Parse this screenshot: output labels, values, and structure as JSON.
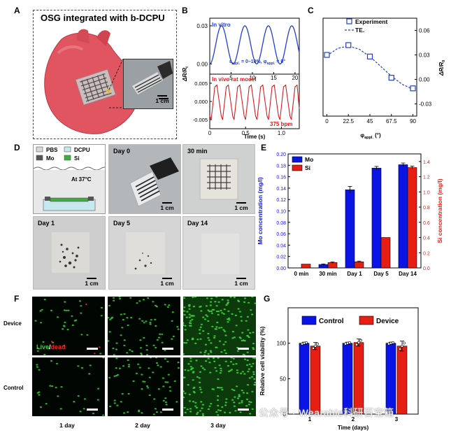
{
  "panels": {
    "A": {
      "label": "A",
      "title": "OSG integrated with b-DCPU",
      "scale": "1 cm"
    },
    "B": {
      "label": "B",
      "top_legend": "In vitro",
      "top_condition_1": "ε",
      "top_condition_1_sub": "appl.",
      "top_condition_2": " = 0–10%, φ",
      "top_condition_2_sub": "appl.",
      "top_condition_3": " = 0°",
      "bottom_legend": "In vivo rat model",
      "bottom_rate": "375 bpm",
      "ylabel": "ΔR/R",
      "ylabel_sub": "t",
      "xlabel": "Time (s)",
      "top_x_ticks": [
        "5",
        "10",
        "15",
        "20"
      ],
      "top_y_ticks": [
        "0.03",
        "0.00"
      ],
      "bottom_x_ticks": [
        "0",
        "0.5",
        "1.0"
      ],
      "bottom_y_ticks": [
        "0.005",
        "0.000",
        "-0.005"
      ]
    },
    "C": {
      "label": "C",
      "legend_experiment": "Experiment",
      "legend_theory": "TE.",
      "xlabel": "φ",
      "xlabel_sub": "appl.",
      "xlabel_unit": " (°)",
      "ylabel": "ΔR/R",
      "ylabel_sub": "0",
      "x_ticks": [
        "0",
        "22.5",
        "45",
        "67.5",
        "90"
      ],
      "y_ticks": [
        "0.06",
        "0.03",
        "0.00",
        "-0.03"
      ]
    },
    "D": {
      "label": "D",
      "legend": [
        "PBS",
        "DCPU",
        "Mo",
        "Si"
      ],
      "legend_colors": [
        "#d9d9d9",
        "#c8e8f0",
        "#555555",
        "#3fae3f"
      ],
      "condition": "At 37°C",
      "photos": [
        {
          "caption": "Day 0",
          "scale": "1 cm"
        },
        {
          "caption": "30 min",
          "scale": "1 cm"
        },
        {
          "caption": "Day 1",
          "scale": "1 cm"
        },
        {
          "caption": "Day 5",
          "scale": "1 cm"
        },
        {
          "caption": "Day 14",
          "scale": "1 cm"
        }
      ]
    },
    "E": {
      "label": "E"
    },
    "F": {
      "label": "F",
      "row_labels": [
        "Device",
        "Control"
      ],
      "live_label": "Live",
      "slash": "/",
      "dead_label": "dead",
      "day_labels": [
        "1 day",
        "2 day",
        "3 day"
      ]
    },
    "G": {
      "label": "G"
    }
  },
  "watermark": "公众号 · Wearable科研百宝箱",
  "chart_data": [
    {
      "type": "line",
      "panel": "B-top",
      "title": "",
      "legend": "In vitro",
      "xlabel": "Time (s)",
      "ylabel": "ΔR/Rt",
      "xlim": [
        0,
        21
      ],
      "ylim": [
        -0.008,
        0.036
      ],
      "series": [
        {
          "color": "#1f3fd1",
          "x": [
            0,
            2.75,
            5.5,
            8.25,
            11,
            13.75,
            16.5,
            19.25,
            21
          ],
          "y": [
            0.0,
            0.03,
            0.0,
            0.03,
            0.0,
            0.03,
            0.0,
            0.03,
            0.012
          ]
        }
      ]
    },
    {
      "type": "line",
      "panel": "B-bottom",
      "title": "",
      "legend": "In vivo rat model",
      "annotation": "375 bpm",
      "xlabel": "Time (s)",
      "ylabel": "ΔR/Rt",
      "xlim": [
        0,
        1.25
      ],
      "ylim": [
        -0.0075,
        0.0075
      ],
      "beat_period": 0.16,
      "series": [
        {
          "color": "#d11f1f",
          "x": [
            0,
            0.02,
            0.07,
            0.1,
            0.16,
            0.18,
            0.23,
            0.26,
            0.32,
            0.34,
            0.39,
            0.42,
            0.48,
            0.5,
            0.55,
            0.58,
            0.64,
            0.66,
            0.71,
            0.74,
            0.8,
            0.82,
            0.87,
            0.9,
            0.96,
            0.98,
            1.03,
            1.06,
            1.12,
            1.14,
            1.19,
            1.22,
            1.25
          ],
          "y": [
            -0.004,
            -0.005,
            0.004,
            0.0045,
            -0.004,
            -0.005,
            0.004,
            0.0045,
            -0.004,
            -0.005,
            0.004,
            0.0045,
            -0.004,
            -0.005,
            0.004,
            0.0045,
            -0.004,
            -0.005,
            0.004,
            0.0045,
            -0.004,
            -0.005,
            0.004,
            0.0045,
            -0.004,
            -0.005,
            0.004,
            0.0045,
            -0.004,
            -0.005,
            0.004,
            0.0045,
            -0.002
          ]
        }
      ]
    },
    {
      "type": "scatter",
      "panel": "C",
      "xlabel": "φappl. (°)",
      "ylabel": "ΔR/R0",
      "xlim": [
        -4,
        94
      ],
      "ylim": [
        -0.045,
        0.075
      ],
      "series": [
        {
          "name": "Experiment",
          "x": [
            0,
            22.5,
            45,
            67.5,
            90
          ],
          "y": [
            0.03,
            0.042,
            0.028,
            0.002,
            -0.011
          ]
        },
        {
          "name": "TE.",
          "style": "dashed",
          "x": [
            0,
            11.25,
            22.5,
            33.75,
            45,
            56.25,
            67.5,
            78.75,
            90
          ],
          "y": [
            0.029,
            0.038,
            0.041,
            0.037,
            0.028,
            0.016,
            0.004,
            -0.006,
            -0.012
          ]
        }
      ],
      "x_ticks": [
        0,
        22.5,
        45,
        67.5,
        90
      ],
      "y_ticks": [
        0.06,
        0.03,
        0.0,
        -0.03
      ]
    },
    {
      "type": "bar",
      "panel": "E",
      "categories": [
        "0 min",
        "30 min",
        "Day 1",
        "Day 5",
        "Day 14"
      ],
      "series": [
        {
          "name": "Mo",
          "color": "#0a14e6",
          "axis": "left",
          "values": [
            0.0,
            0.006,
            0.137,
            0.175,
            0.181
          ],
          "errors": [
            0.0,
            0.001,
            0.006,
            0.003,
            0.003
          ]
        },
        {
          "name": "Si",
          "color": "#e61e14",
          "axis": "right",
          "values": [
            0.05,
            0.07,
            0.08,
            0.4,
            1.32
          ],
          "errors": [
            0.0,
            0.01,
            0.01,
            0.0,
            0.02
          ]
        }
      ],
      "ylabel_left": "Mo concentration (mg/l)",
      "ylabel_right": "Si concentration (mg/l)",
      "ylim_left": [
        0.0,
        0.2
      ],
      "ylim_right": [
        0.0,
        1.5
      ],
      "left_ticks": [
        "0.00",
        "0.02",
        "0.04",
        "0.06",
        "0.08",
        "0.10",
        "0.12",
        "0.14",
        "0.16",
        "0.18",
        "0.20"
      ],
      "right_ticks": [
        "0.0",
        "0.2",
        "0.4",
        "0.6",
        "0.8",
        "1.0",
        "1.2",
        "1.4"
      ],
      "legend": "top-left"
    },
    {
      "type": "bar",
      "panel": "G",
      "categories": [
        "1",
        "2",
        "3"
      ],
      "series": [
        {
          "name": "Control",
          "color": "#0a14e6",
          "values": [
            100,
            100,
            100
          ],
          "errors": [
            1.5,
            1.5,
            1.5
          ]
        },
        {
          "name": "Device",
          "color": "#e61e14",
          "values": [
            96,
            101,
            96
          ],
          "errors": [
            5,
            5,
            7
          ]
        }
      ],
      "xlabel": "Time (days)",
      "ylabel": "Relative cell viability (%)",
      "ylim": [
        0,
        150
      ],
      "y_ticks": [
        0,
        50,
        100
      ],
      "legend": "top"
    }
  ]
}
